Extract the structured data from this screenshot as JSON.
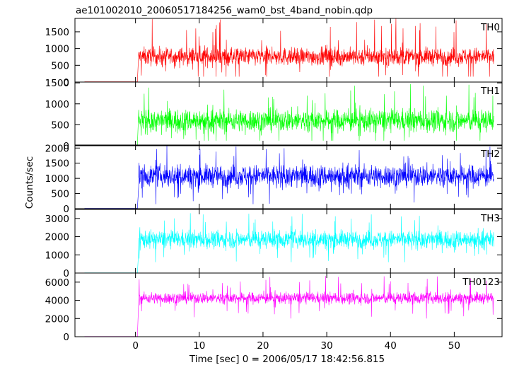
{
  "chart_data": {
    "type": "line",
    "title": "ae101002010_20060517184256_wam0_bst_4band_nobin.qdp",
    "xlabel": "Time [sec] 0 = 2006/05/17 18:42:56.815",
    "ylabel": "Counts/sec",
    "xlim": [
      -9.5,
      57.5
    ],
    "x_ticks": [
      0,
      10,
      20,
      30,
      40,
      50
    ],
    "x_range": [
      -8,
      56.2
    ],
    "burst_start_sec": 0.3,
    "grid": false,
    "legend": "none",
    "series": [
      {
        "name": "TH0",
        "color": "#ff0000",
        "ylim": [
          0,
          1900
        ],
        "y_ticks": [
          0,
          500,
          1000,
          1500
        ],
        "pre_level": 10,
        "post_mean": 760,
        "post_spread": 220,
        "post_min": 160,
        "post_max": 1900
      },
      {
        "name": "TH1",
        "color": "#00ff00",
        "ylim": [
          0,
          1520
        ],
        "y_ticks": [
          0,
          500,
          1000,
          1500
        ],
        "pre_level": 10,
        "post_mean": 600,
        "post_spread": 220,
        "post_min": 120,
        "post_max": 1480
      },
      {
        "name": "TH2",
        "color": "#0000ff",
        "ylim": [
          0,
          2100
        ],
        "y_ticks": [
          0,
          500,
          1000,
          1500,
          2000
        ],
        "pre_level": 10,
        "post_mean": 1080,
        "post_spread": 300,
        "post_min": 150,
        "post_max": 2100
      },
      {
        "name": "TH3",
        "color": "#00ffff",
        "ylim": [
          0,
          3500
        ],
        "y_ticks": [
          0,
          1000,
          2000,
          3000
        ],
        "pre_level": 10,
        "post_mean": 1850,
        "post_spread": 400,
        "post_min": 600,
        "post_max": 3300
      },
      {
        "name": "TH0123",
        "color": "#ff00ff",
        "ylim": [
          0,
          7000
        ],
        "y_ticks": [
          0,
          2000,
          4000,
          6000
        ],
        "pre_level": 20,
        "post_mean": 4250,
        "post_spread": 520,
        "post_min": 2000,
        "post_max": 6700
      }
    ]
  }
}
